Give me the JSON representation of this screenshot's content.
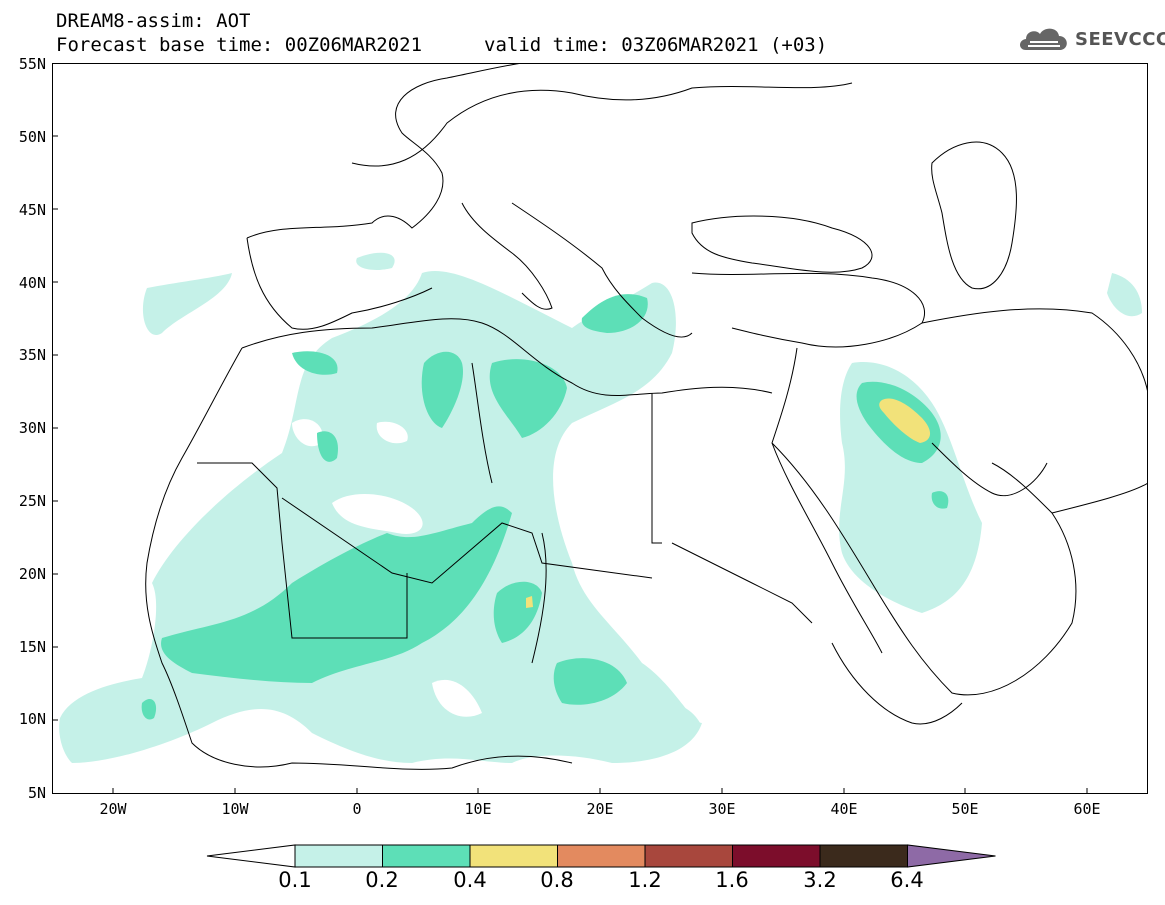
{
  "title": {
    "line1": "DREAM8-assim: AOT",
    "line2": "Forecast base time: 00Z06MAR2021",
    "valid": "valid time: 03Z06MAR2021 (+03)"
  },
  "logo": {
    "text": "SEEVCCC",
    "icon": "cloud-icon"
  },
  "map": {
    "lon_range": [
      -25,
      65
    ],
    "lat_range": [
      5,
      55
    ],
    "lat_ticks": [
      "55N",
      "50N",
      "45N",
      "40N",
      "35N",
      "30N",
      "25N",
      "20N",
      "15N",
      "10N",
      "5N"
    ],
    "lon_ticks": [
      "20W",
      "10W",
      "0",
      "10E",
      "20E",
      "30E",
      "40E",
      "50E",
      "60E"
    ],
    "variable": "AOT"
  },
  "colorbar": {
    "labels": [
      "0.1",
      "0.2",
      "0.4",
      "0.8",
      "1.2",
      "1.6",
      "3.2",
      "6.4"
    ],
    "colors": [
      "#ffffff",
      "#c5f1e8",
      "#5ddfb7",
      "#f2e27a",
      "#e38a5f",
      "#a8473d",
      "#7c0d2b",
      "#3b2a1c",
      "#8e6aa6"
    ]
  }
}
